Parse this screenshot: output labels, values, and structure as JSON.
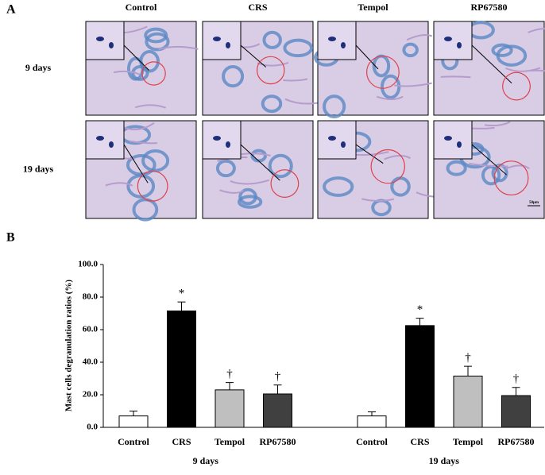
{
  "panel_a": {
    "label": "A",
    "columns": [
      "Control",
      "CRS",
      "Tempol",
      "RP67580"
    ],
    "rows": [
      "9 days",
      "19 days"
    ],
    "scale_bar": "50μm"
  },
  "chart_data": {
    "type": "bar",
    "panel_label": "B",
    "y_label": "Mast cells degranulation ratios (%)",
    "categories": [
      "Control",
      "CRS",
      "Tempol",
      "RP67580"
    ],
    "colors": [
      "#ffffff",
      "#000000",
      "#bfbfbf",
      "#404040"
    ],
    "series": [
      {
        "name": "9 days",
        "values": [
          7,
          71.5,
          23,
          20.5
        ],
        "errors": [
          3,
          5.5,
          4.5,
          5.5
        ],
        "annotations": [
          {
            "index": 1,
            "text": "*"
          },
          {
            "index": 2,
            "text": "†"
          },
          {
            "index": 3,
            "text": "†"
          }
        ]
      },
      {
        "name": "19 days",
        "values": [
          7,
          62.5,
          31.5,
          19.5
        ],
        "errors": [
          2.5,
          4.5,
          6,
          5
        ],
        "annotations": [
          {
            "index": 1,
            "text": "*"
          },
          {
            "index": 2,
            "text": "†"
          },
          {
            "index": 3,
            "text": "†"
          }
        ]
      }
    ],
    "ylim": [
      0,
      100
    ],
    "yticks": [
      {
        "value": 0,
        "label": "0.0"
      },
      {
        "value": 20,
        "label": "20.0"
      },
      {
        "value": 40,
        "label": "40.0"
      },
      {
        "value": 60,
        "label": "60.0"
      },
      {
        "value": 80,
        "label": "80.0"
      },
      {
        "value": 100,
        "label": "100.0"
      }
    ]
  }
}
